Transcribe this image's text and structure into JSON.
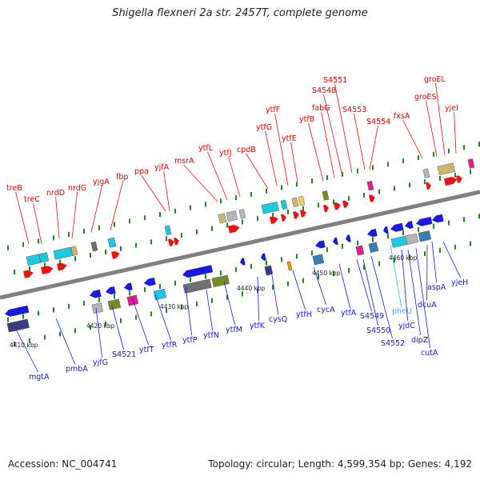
{
  "title": "Shigella flexneri 2a str. 2457T, complete genome",
  "footer": {
    "accession": "Accession: NC_004741",
    "stats": "Topology: circular; Length: 4,599,354 bp; Genes: 4,192"
  },
  "kbp_labels": [
    "4410 kbp",
    "4420 kbp",
    "4430 kbp",
    "4440 kbp",
    "4450 kbp",
    "4460 kbp"
  ],
  "genes_top": [
    "treB",
    "treC",
    "nrdD",
    "nrdG",
    "yjgA",
    "fbp",
    "ppa",
    "yjfA",
    "msrA",
    "ytfL",
    "ytfJ",
    "cpdB",
    "ytfG",
    "ytfF",
    "ytfE",
    "ytfB",
    "fabG",
    "S4548",
    "S4551",
    "S4553",
    "S4554",
    "fxsA",
    "groES",
    "groEL",
    "yjeI"
  ],
  "genes_bottom": [
    "mgtA",
    "pmbA",
    "yjfG",
    "S4521",
    "ytfT",
    "ytfR",
    "ytfP",
    "ytfN",
    "ytfM",
    "ytfK",
    "cysQ",
    "ytfH",
    "cycA",
    "ytfA",
    "S4549",
    "S4550",
    "S4552",
    "pheU",
    "yjdC",
    "dipZ",
    "cutA",
    "dcuA",
    "aspA",
    "yjeH"
  ],
  "highlight_gene": "pheU",
  "colors": {
    "forward": "#ee1111",
    "reverse": "#1a1ae0",
    "axis": "#808080",
    "tick": "#1c8a1c",
    "cyan": "#1ec8e0",
    "magenta": "#e81a90",
    "olive": "#7a8a22",
    "gray": "#b4b4b4",
    "darkgray": "#707070",
    "khaki": "#c8b870",
    "steel": "#3c7cb4",
    "navy": "#3a3a80",
    "orange": "#ff8c00",
    "yellow": "#eed060",
    "highlight": "#33b8e8"
  }
}
